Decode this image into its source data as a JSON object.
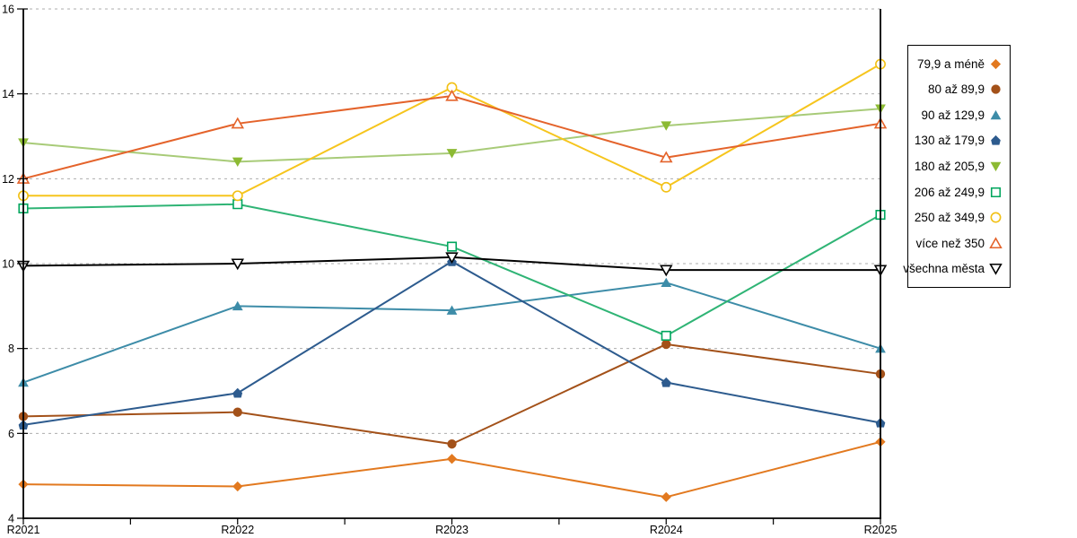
{
  "chart_data": {
    "type": "line",
    "title": "",
    "xlabel": "",
    "ylabel": "",
    "x_categories": [
      "R2021",
      "R2022",
      "R2023",
      "R2024",
      "R2025"
    ],
    "ylim": [
      4,
      16
    ],
    "y_ticks": [
      4,
      6,
      8,
      10,
      12,
      14,
      16
    ],
    "grid": "horizontal-dashed",
    "legend_position": "right",
    "colors": {
      "grid": "#ADADAD",
      "axis": "#000000",
      "legend_border": "#000000",
      "background": "#FFFFFF"
    },
    "series": [
      {
        "name": "79,9 a méně",
        "marker": "diamond",
        "fill": "solid",
        "color": "#E2791F",
        "values": [
          4.8,
          4.75,
          5.4,
          4.5,
          5.8
        ]
      },
      {
        "name": "80 až 89,9",
        "marker": "circle",
        "fill": "solid",
        "color": "#A35119",
        "values": [
          6.4,
          6.5,
          5.75,
          8.1,
          7.4
        ]
      },
      {
        "name": "90 až 129,9",
        "marker": "triangle-up",
        "fill": "solid",
        "color": "#3D8CA8",
        "values": [
          7.2,
          9.0,
          8.9,
          9.55,
          8.0
        ]
      },
      {
        "name": "130 až 179,9",
        "marker": "pentagon",
        "fill": "solid",
        "color": "#2D5B8E",
        "values": [
          6.2,
          6.95,
          10.05,
          7.2,
          6.25
        ]
      },
      {
        "name": "180 až 205,9",
        "marker": "triangle-down",
        "fill": "solid",
        "color": "#8CBA33",
        "line_color": "#A8CB78",
        "values": [
          12.85,
          12.4,
          12.6,
          13.25,
          13.65
        ]
      },
      {
        "name": "206 až 249,9",
        "marker": "square",
        "fill": "open",
        "color": "#00A65E",
        "line_color": "#2FB475",
        "values": [
          11.3,
          11.4,
          10.4,
          8.3,
          11.15
        ]
      },
      {
        "name": "250 až 349,9",
        "marker": "circle",
        "fill": "open",
        "color": "#F2C014",
        "line_color": "#F6C51D",
        "values": [
          11.6,
          11.6,
          14.15,
          11.8,
          14.7
        ]
      },
      {
        "name": "více než 350",
        "marker": "triangle-up",
        "fill": "open",
        "color": "#E4632B",
        "values": [
          12.0,
          13.3,
          13.95,
          12.5,
          13.3
        ]
      },
      {
        "name": "všechna města",
        "marker": "triangle-down",
        "fill": "open",
        "color": "#000000",
        "values": [
          9.95,
          10.0,
          10.15,
          9.85,
          9.85
        ]
      }
    ]
  }
}
